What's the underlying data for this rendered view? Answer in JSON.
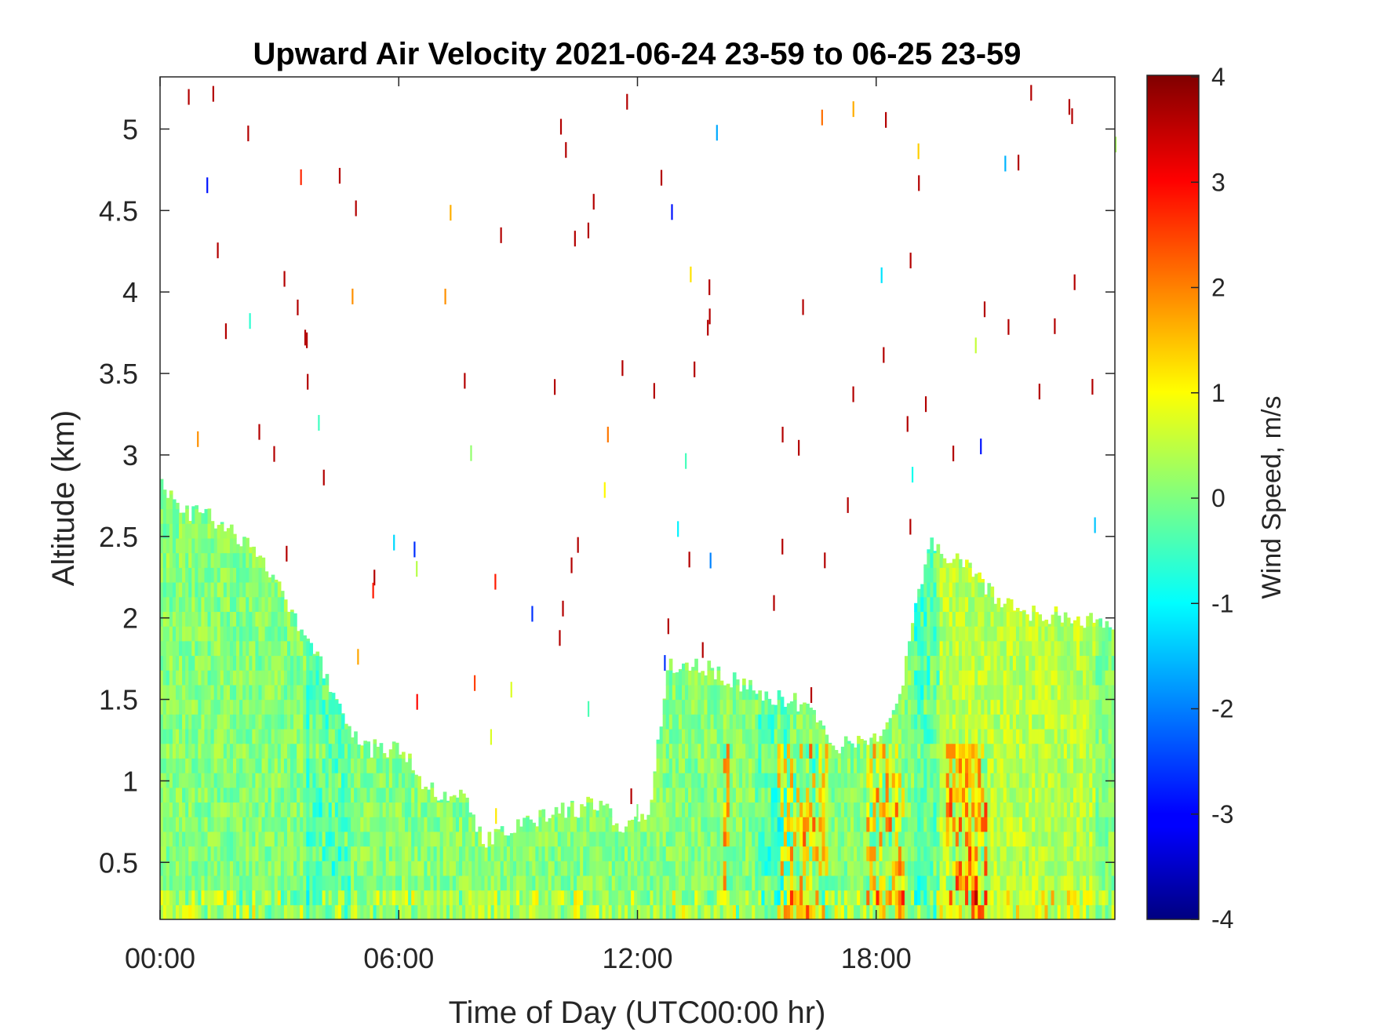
{
  "chart_data": {
    "type": "heatmap",
    "title": "Upward Air Velocity 2021-06-24 23-59 to 06-25 23-59",
    "xlabel": "Time of Day (UTC00:00 hr)",
    "ylabel": "Altitude (km)",
    "x_range_hours": [
      0,
      24
    ],
    "y_range_km": [
      0.15,
      5.32
    ],
    "x_ticks": [
      {
        "hour": 0,
        "label": "00:00"
      },
      {
        "hour": 6,
        "label": "06:00"
      },
      {
        "hour": 12,
        "label": "12:00"
      },
      {
        "hour": 18,
        "label": "18:00"
      }
    ],
    "y_ticks": [
      {
        "value": 0.5,
        "label": "0.5"
      },
      {
        "value": 1,
        "label": "1"
      },
      {
        "value": 1.5,
        "label": "1.5"
      },
      {
        "value": 2,
        "label": "2"
      },
      {
        "value": 2.5,
        "label": "2.5"
      },
      {
        "value": 3,
        "label": "3"
      },
      {
        "value": 3.5,
        "label": "3.5"
      },
      {
        "value": 4,
        "label": "4"
      },
      {
        "value": 4.5,
        "label": "4.5"
      },
      {
        "value": 5,
        "label": "5"
      }
    ],
    "colorbar": {
      "label": "Wind Speed, m/s",
      "range": [
        -4,
        4
      ],
      "colormap": "jet",
      "ticks": [
        {
          "value": 4,
          "label": "4"
        },
        {
          "value": 3,
          "label": "3"
        },
        {
          "value": 2,
          "label": "2"
        },
        {
          "value": 1,
          "label": "1"
        },
        {
          "value": 0,
          "label": "0"
        },
        {
          "value": -1,
          "label": "-1"
        },
        {
          "value": -2,
          "label": "-2"
        },
        {
          "value": -3,
          "label": "-3"
        },
        {
          "value": -4,
          "label": "-4"
        }
      ]
    },
    "data_ceiling_km": [
      {
        "hour": 0.0,
        "top": 2.85
      },
      {
        "hour": 0.5,
        "top": 2.65
      },
      {
        "hour": 1.0,
        "top": 2.65
      },
      {
        "hour": 1.7,
        "top": 2.55
      },
      {
        "hour": 2.6,
        "top": 2.35
      },
      {
        "hour": 3.5,
        "top": 1.95
      },
      {
        "hour": 4.4,
        "top": 1.55
      },
      {
        "hour": 5.0,
        "top": 1.2
      },
      {
        "hour": 6.1,
        "top": 1.2
      },
      {
        "hour": 6.6,
        "top": 0.95
      },
      {
        "hour": 7.6,
        "top": 0.9
      },
      {
        "hour": 8.2,
        "top": 0.62
      },
      {
        "hour": 9.0,
        "top": 0.72
      },
      {
        "hour": 10.0,
        "top": 0.8
      },
      {
        "hour": 11.0,
        "top": 0.86
      },
      {
        "hour": 11.8,
        "top": 0.7
      },
      {
        "hour": 12.3,
        "top": 0.8
      },
      {
        "hour": 12.8,
        "top": 1.7
      },
      {
        "hour": 13.5,
        "top": 1.72
      },
      {
        "hour": 14.3,
        "top": 1.62
      },
      {
        "hour": 15.3,
        "top": 1.52
      },
      {
        "hour": 16.1,
        "top": 1.48
      },
      {
        "hour": 17.0,
        "top": 1.22
      },
      {
        "hour": 18.0,
        "top": 1.28
      },
      {
        "hour": 18.6,
        "top": 1.52
      },
      {
        "hour": 19.0,
        "top": 2.05
      },
      {
        "hour": 19.4,
        "top": 2.45
      },
      {
        "hour": 20.2,
        "top": 2.32
      },
      {
        "hour": 21.0,
        "top": 2.12
      },
      {
        "hour": 22.0,
        "top": 2.02
      },
      {
        "hour": 23.0,
        "top": 2.02
      },
      {
        "hour": 24.0,
        "top": 1.92
      }
    ],
    "strong_updraft_periods_hours": [
      [
        14.2,
        14.3
      ],
      [
        15.5,
        16.8
      ],
      [
        17.8,
        18.7
      ],
      [
        19.8,
        20.8
      ]
    ],
    "downdraft_periods_hours": [
      [
        3.7,
        4.8
      ],
      [
        15.0,
        15.8
      ],
      [
        19.0,
        19.6
      ]
    ]
  }
}
